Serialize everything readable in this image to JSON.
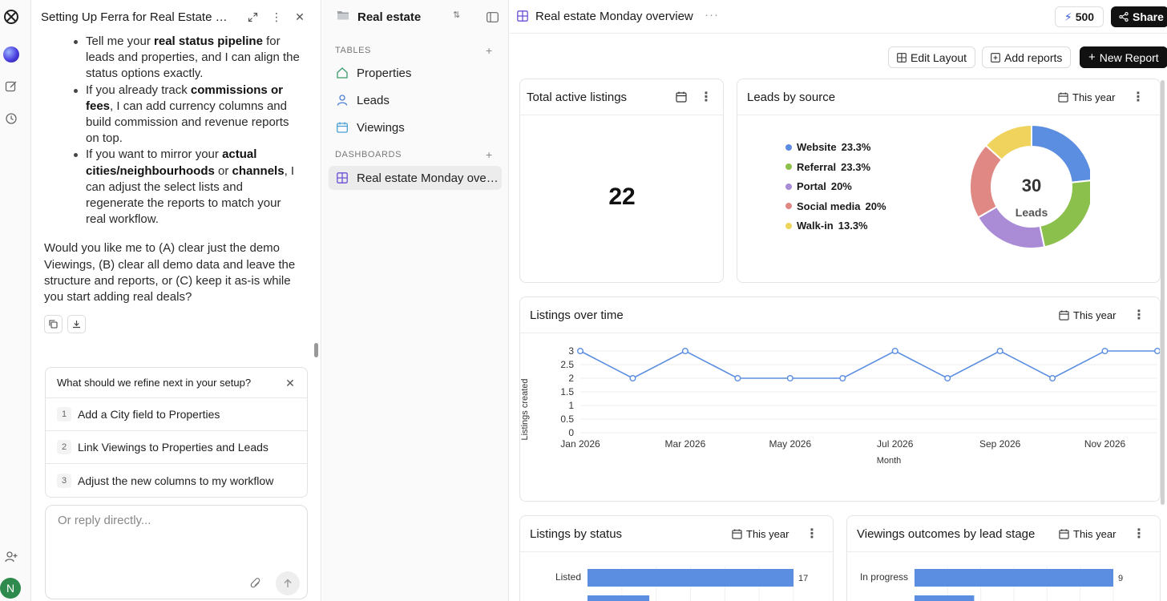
{
  "chat": {
    "title": "Setting Up Ferra for Real Estate Workspace",
    "bullets": [
      [
        {
          "t": "Tell me your "
        },
        {
          "t": "real status pipeline",
          "b": true
        },
        {
          "t": " for leads and properties, and I can align the status options exactly."
        }
      ],
      [
        {
          "t": "If you already track "
        },
        {
          "t": "commissions or fees",
          "b": true
        },
        {
          "t": ", I can add currency columns and build commission and revenue reports on top."
        }
      ],
      [
        {
          "t": "If you want to mirror your "
        },
        {
          "t": "actual cities/neighbourhoods",
          "b": true
        },
        {
          "t": " or "
        },
        {
          "t": "channels",
          "b": true
        },
        {
          "t": ", I can adjust the select lists and regenerate the reports to match your real workflow."
        }
      ]
    ],
    "closing": "Would you like me to (A) clear just the demo Viewings, (B) clear all demo data and leave the structure and reports, or (C) keep it as-is while you start adding real deals?",
    "suggestions_title": "What should we refine next in your setup?",
    "suggestions": [
      {
        "n": "1",
        "label": "Add a City field to Properties"
      },
      {
        "n": "2",
        "label": "Link Viewings to Properties and Leads"
      },
      {
        "n": "3",
        "label": "Adjust the new columns to my workflow"
      }
    ],
    "reply_placeholder": "Or reply directly..."
  },
  "user": {
    "initial": "N"
  },
  "workspace": {
    "name": "Real estate",
    "tables_label": "TABLES",
    "tables": [
      "Properties",
      "Leads",
      "Viewings"
    ],
    "dashboards_label": "DASHBOARDS",
    "dashboards": [
      "Real estate Monday overview"
    ]
  },
  "header": {
    "dashboard_title": "Real estate Monday overview",
    "credits": "500",
    "share_label": "Share"
  },
  "toolbar": {
    "edit_layout": "Edit Layout",
    "add_reports": "Add reports",
    "new_report": "New Report"
  },
  "colors": {
    "accent": "#5b8ee0",
    "website": "#5b8ee0",
    "referral": "#8cc04d",
    "portal": "#a98bd6",
    "social": "#e08883",
    "walkin": "#efd35d"
  },
  "cards": {
    "total_listings": {
      "title": "Total active listings",
      "value": "22"
    },
    "leads_by_source": {
      "title": "Leads by source",
      "period": "This year",
      "center_value": "30",
      "center_label": "Leads",
      "legend": [
        {
          "name": "Website",
          "pct": "23.3%"
        },
        {
          "name": "Referral",
          "pct": "23.3%"
        },
        {
          "name": "Portal",
          "pct": "20%"
        },
        {
          "name": "Social media",
          "pct": "20%"
        },
        {
          "name": "Walk-in",
          "pct": "13.3%"
        }
      ]
    },
    "listings_over_time": {
      "title": "Listings over time",
      "period": "This year"
    },
    "listings_by_status": {
      "title": "Listings by status",
      "period": "This year"
    },
    "viewings_outcomes": {
      "title": "Viewings outcomes by lead stage",
      "period": "This year"
    }
  },
  "chart_data": [
    {
      "type": "pie",
      "title": "Leads by source",
      "categories": [
        "Website",
        "Referral",
        "Portal",
        "Social media",
        "Walk-in"
      ],
      "values": [
        23.3,
        23.3,
        20,
        20,
        13.3
      ]
    },
    {
      "type": "line",
      "title": "Listings over time",
      "xlabel": "Month",
      "ylabel": "Listings created",
      "x": [
        "Jan 2026",
        "Feb 2026",
        "Mar 2026",
        "Apr 2026",
        "May 2026",
        "Jun 2026",
        "Jul 2026",
        "Aug 2026",
        "Sep 2026",
        "Oct 2026",
        "Nov 2026",
        "Dec 2026"
      ],
      "x_tick_labels": [
        "Jan 2026",
        "Mar 2026",
        "May 2026",
        "Jul 2026",
        "Sep 2026",
        "Nov 2026"
      ],
      "values": [
        3,
        2,
        3,
        2,
        2,
        2,
        3,
        2,
        3,
        2,
        3,
        3
      ],
      "ylim": [
        0,
        3
      ],
      "y_ticks": [
        "0",
        "0.5",
        "1",
        "1.5",
        "2",
        "2.5",
        "3"
      ],
      "grid": true
    },
    {
      "type": "bar",
      "title": "Listings by status",
      "orientation": "horizontal",
      "categories": [
        "Listed"
      ],
      "values": [
        17
      ],
      "data_labels": [
        "17"
      ]
    },
    {
      "type": "bar",
      "title": "Viewings outcomes by lead stage",
      "orientation": "horizontal",
      "categories": [
        "In progress"
      ],
      "values": [
        9
      ],
      "data_labels": [
        "9"
      ]
    }
  ]
}
